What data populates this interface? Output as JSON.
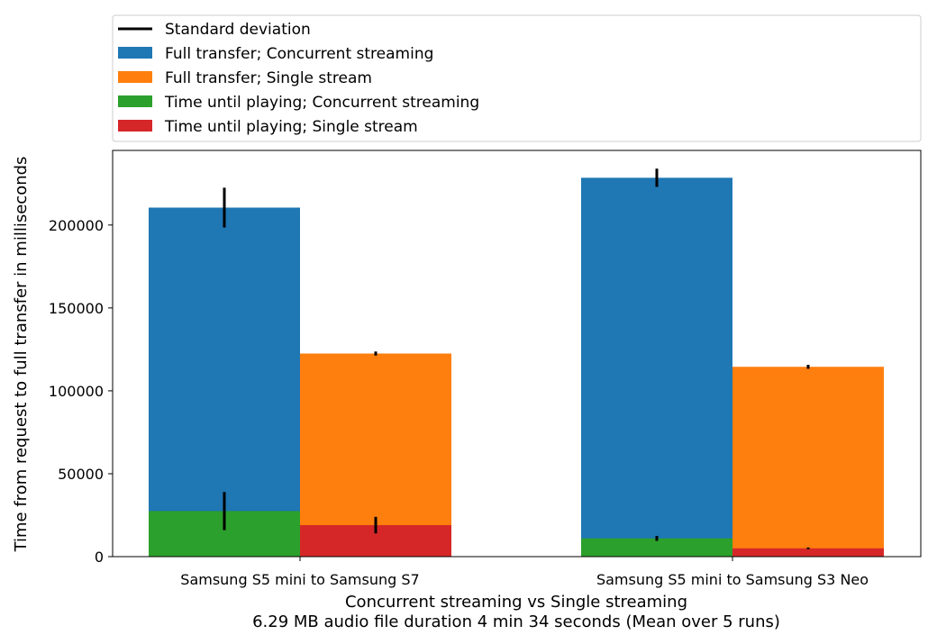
{
  "chart_data": {
    "type": "bar",
    "title": "",
    "xlabel": "Concurrent streaming vs Single streaming",
    "xlabel_line2": "6.29 MB audio file duration 4 min 34 seconds (Mean over 5 runs)",
    "ylabel": "Time from request to full transfer in milliseconds",
    "categories": [
      "Samsung S5 mini to Samsung S7",
      "Samsung S5 mini to Samsung S3 Neo"
    ],
    "ylim": [
      0,
      245000
    ],
    "yticks": [
      0,
      50000,
      100000,
      150000,
      200000
    ],
    "grid": false,
    "legend_position": "top",
    "legend": [
      {
        "label": "Standard deviation",
        "kind": "line",
        "color": "#000000"
      },
      {
        "label": "Full transfer; Concurrent streaming",
        "kind": "patch",
        "color": "#1f77b4"
      },
      {
        "label": "Full transfer; Single stream",
        "kind": "patch",
        "color": "#ff7f0e"
      },
      {
        "label": "Time until playing; Concurrent streaming",
        "kind": "patch",
        "color": "#2ca02c"
      },
      {
        "label": "Time until playing; Single stream",
        "kind": "patch",
        "color": "#d62728"
      }
    ],
    "series": [
      {
        "name": "Full transfer; Concurrent streaming",
        "color": "#1f77b4",
        "slot": 0,
        "values": [
          210500,
          228500
        ],
        "std": [
          12000,
          5500
        ]
      },
      {
        "name": "Full transfer; Single stream",
        "color": "#ff7f0e",
        "slot": 1,
        "values": [
          122500,
          114500
        ],
        "std": [
          1200,
          1200
        ]
      },
      {
        "name": "Time until playing; Concurrent streaming",
        "color": "#2ca02c",
        "slot": 0,
        "values": [
          27500,
          11000
        ],
        "std": [
          11500,
          1500
        ]
      },
      {
        "name": "Time until playing; Single stream",
        "color": "#d62728",
        "slot": 1,
        "values": [
          19000,
          5000
        ],
        "std": [
          5000,
          500
        ]
      }
    ]
  }
}
